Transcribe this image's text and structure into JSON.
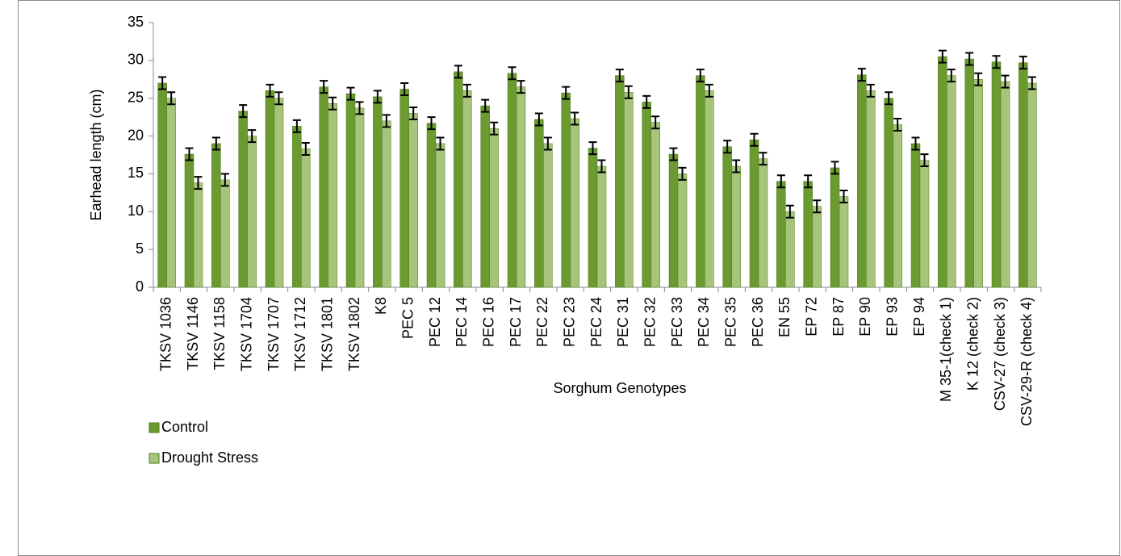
{
  "chart_data": {
    "type": "bar",
    "y_label": "Earhead length  (cm)",
    "x_label": "Sorghum Genotypes",
    "categories": [
      "TKSV 1036",
      "TKSV 1146",
      "TKSV 1158",
      "TKSV 1704",
      "TKSV 1707",
      "TKSV 1712",
      "TKSV 1801",
      "TKSV 1802",
      "K8",
      "PEC 5",
      "PEC 12",
      "PEC 14",
      "PEC 16",
      "PEC 17",
      "PEC 22",
      "PEC 23",
      "PEC 24",
      "PEC 31",
      "PEC 32",
      "PEC 33",
      "PEC 34",
      "PEC 35",
      "PEC 36",
      "EN 55",
      "EP 72",
      "EP 87",
      "EP 90",
      "EP 93",
      "EP 94",
      "M 35-1(check 1)",
      "K 12 (check 2)",
      "CSV-27 (check 3)",
      "CSV-29-R (check 4)"
    ],
    "series": [
      {
        "name": "Control",
        "color": "#6b9a30",
        "values": [
          27,
          17.6,
          19,
          23.3,
          26,
          21.3,
          26.5,
          25.6,
          25.2,
          26.2,
          21.7,
          28.5,
          24,
          28.3,
          22.2,
          25.7,
          18.4,
          28,
          24.5,
          17.6,
          28,
          18.6,
          19.5,
          14,
          14,
          15.8,
          28.1,
          25,
          19,
          30.5,
          30.2,
          29.8,
          29.7
        ],
        "errors": [
          0.8,
          0.8,
          0.8,
          0.8,
          0.8,
          0.8,
          0.8,
          0.8,
          0.8,
          0.8,
          0.8,
          0.8,
          0.8,
          0.8,
          0.8,
          0.8,
          0.8,
          0.8,
          0.8,
          0.8,
          0.8,
          0.8,
          0.8,
          0.8,
          0.8,
          0.8,
          0.8,
          0.8,
          0.8,
          0.8,
          0.8,
          0.8,
          0.8
        ]
      },
      {
        "name": "Drought Stress",
        "color": "#a6c57a",
        "values": [
          25,
          13.8,
          14.2,
          20,
          25,
          18.3,
          24.3,
          23.7,
          22,
          23,
          19,
          26,
          21,
          26.5,
          19,
          22.3,
          16,
          25.8,
          21.8,
          15,
          26,
          16,
          17,
          10,
          10.7,
          12,
          26,
          21.5,
          16.8,
          28,
          27.5,
          27.2,
          27
        ],
        "errors": [
          0.8,
          0.8,
          0.8,
          0.8,
          0.8,
          0.8,
          0.8,
          0.8,
          0.8,
          0.8,
          0.8,
          0.8,
          0.8,
          0.8,
          0.8,
          0.8,
          0.8,
          0.8,
          0.8,
          0.8,
          0.8,
          0.8,
          0.8,
          0.8,
          0.8,
          0.8,
          0.8,
          0.8,
          0.8,
          0.8,
          0.8,
          0.8,
          0.8
        ]
      }
    ],
    "ylim": [
      0,
      35
    ],
    "yticks": [
      0,
      5,
      10,
      15,
      20,
      25,
      30,
      35
    ],
    "grid": false,
    "legend": "bottom-left"
  }
}
